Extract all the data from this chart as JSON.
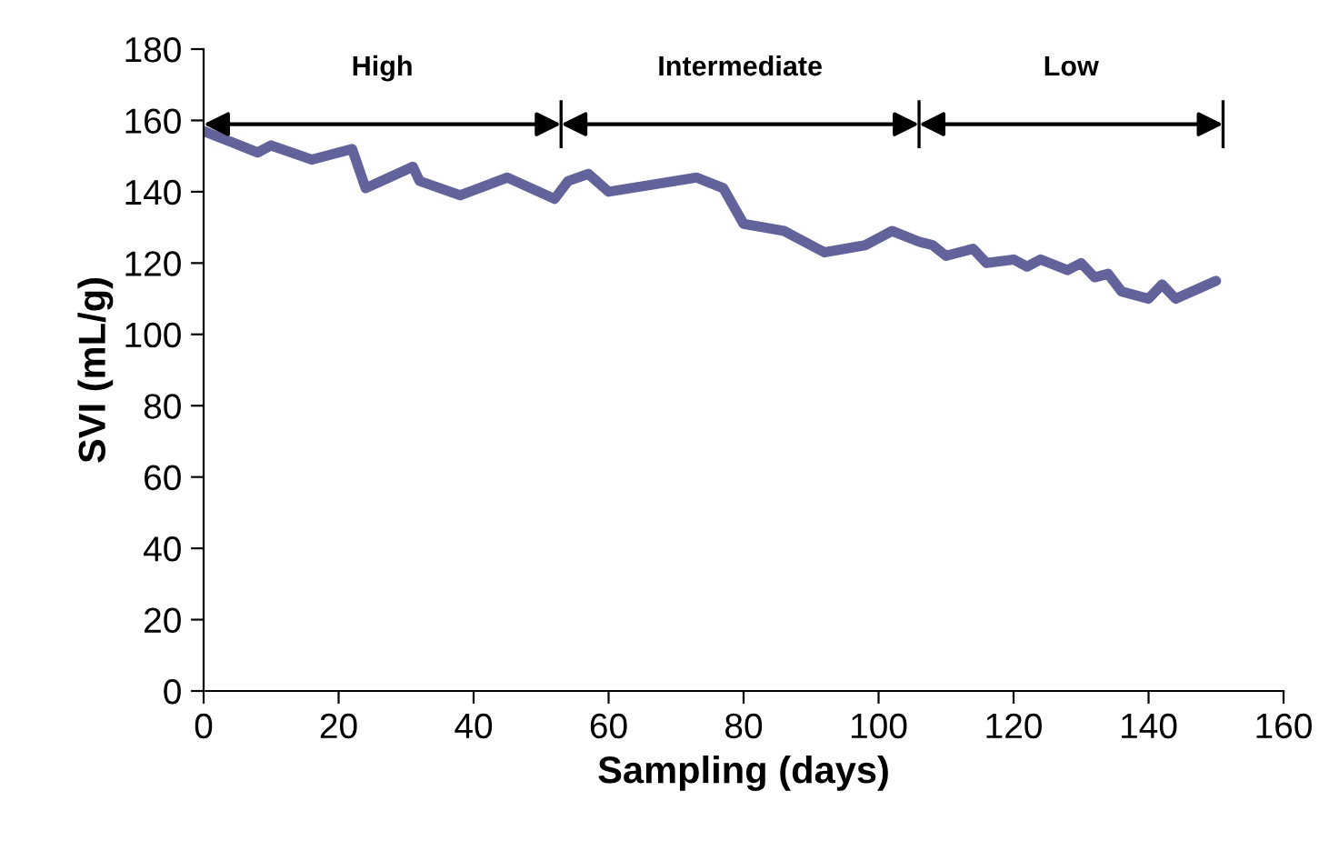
{
  "chart_data": {
    "type": "line",
    "xlabel": "Sampling (days)",
    "ylabel": "SVI (mL/g)",
    "xlim": [
      0,
      160
    ],
    "xticks": [
      0,
      20,
      40,
      60,
      80,
      100,
      120,
      140,
      160
    ],
    "ylim": [
      0,
      180
    ],
    "yticks": [
      0,
      20,
      40,
      60,
      80,
      100,
      120,
      140,
      160,
      180
    ],
    "grid": false,
    "legend": false,
    "marker": "none",
    "line_style": "solid",
    "series": [
      {
        "color": "#63639c",
        "x": [
          0,
          8,
          10,
          16,
          22,
          24,
          31,
          32,
          38,
          45,
          52,
          54,
          57,
          60,
          73,
          77,
          80,
          86,
          92,
          98,
          102,
          106,
          108,
          110,
          114,
          116,
          120,
          122,
          124,
          128,
          130,
          132,
          134,
          136,
          140,
          142,
          144,
          150
        ],
        "values": [
          157,
          151,
          153,
          149,
          152,
          141,
          147,
          143,
          139,
          144,
          138,
          143,
          145,
          140,
          144,
          141,
          131,
          129,
          123,
          125,
          129,
          126,
          125,
          122,
          124,
          120,
          121,
          119,
          121,
          118,
          120,
          116,
          117,
          112,
          110,
          114,
          110,
          115
        ]
      }
    ],
    "annotations": [
      "High",
      "Intermediate",
      "Low"
    ]
  }
}
